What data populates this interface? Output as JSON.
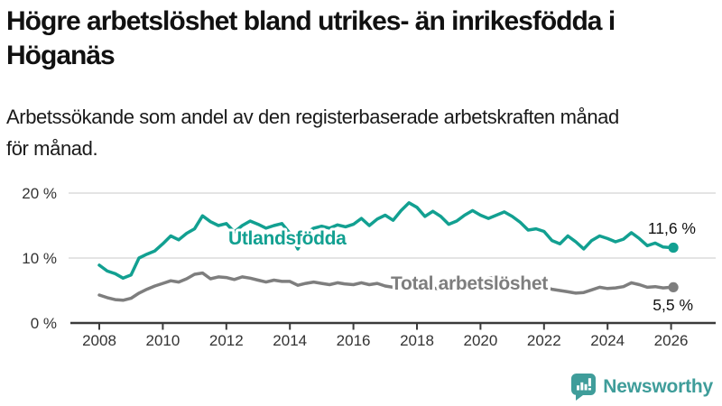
{
  "header": {
    "title_lines": [
      "Högre arbetslöshet bland utrikes- än inrikesfödda i",
      "Höganäs"
    ],
    "subtitle_lines": [
      "Arbetssökande som andel av den registerbaserade arbetskraften månad",
      "för månad."
    ]
  },
  "branding": {
    "logo_text": "Newsworthy",
    "logo_color": "#3f9d9a"
  },
  "chart_data": {
    "type": "line",
    "title": "",
    "xlabel": "",
    "ylabel": "",
    "grid": "horizontal-only",
    "xlim": [
      2007.1,
      2026.4
    ],
    "ylim": [
      0,
      21.5
    ],
    "x_ticks": [
      2008,
      2010,
      2012,
      2014,
      2016,
      2018,
      2020,
      2022,
      2024,
      2026
    ],
    "y_ticks": [
      {
        "v": 0,
        "label": "0 %"
      },
      {
        "v": 10,
        "label": "10 %"
      },
      {
        "v": 20,
        "label": "20 %"
      }
    ],
    "x": [
      2008,
      2008.25,
      2008.5,
      2008.75,
      2009,
      2009.25,
      2009.5,
      2009.75,
      2010,
      2010.25,
      2010.5,
      2010.75,
      2011,
      2011.25,
      2011.5,
      2011.75,
      2012,
      2012.25,
      2012.5,
      2012.75,
      2013,
      2013.25,
      2013.5,
      2013.75,
      2014,
      2014.25,
      2014.5,
      2014.75,
      2015,
      2015.25,
      2015.5,
      2015.75,
      2016,
      2016.25,
      2016.5,
      2016.75,
      2017,
      2017.25,
      2017.5,
      2017.75,
      2018,
      2018.25,
      2018.5,
      2018.75,
      2019,
      2019.25,
      2019.5,
      2019.75,
      2020,
      2020.25,
      2020.5,
      2020.75,
      2021,
      2021.25,
      2021.5,
      2021.75,
      2022,
      2022.25,
      2022.5,
      2022.75,
      2023,
      2023.25,
      2023.5,
      2023.75,
      2024,
      2024.25,
      2024.5,
      2024.75,
      2025,
      2025.25,
      2025.5,
      2025.75,
      2026
    ],
    "series": [
      {
        "name": "Utlandsfödda",
        "color": "#12a091",
        "end_label": "11,6 %",
        "end_value": 11.6,
        "values": [
          8.9,
          8.0,
          7.6,
          6.9,
          7.4,
          10.0,
          10.6,
          11.1,
          12.2,
          13.4,
          12.8,
          13.8,
          14.5,
          16.5,
          15.6,
          15.0,
          15.3,
          14.0,
          15.0,
          15.7,
          15.2,
          14.6,
          15.0,
          15.3,
          13.8,
          11.4,
          13.8,
          14.6,
          14.9,
          14.6,
          15.1,
          14.8,
          15.2,
          16.1,
          15.0,
          16.0,
          16.6,
          15.8,
          17.3,
          18.5,
          17.8,
          16.4,
          17.2,
          16.4,
          15.2,
          15.7,
          16.6,
          17.3,
          16.6,
          16.1,
          16.6,
          17.1,
          16.4,
          15.5,
          14.3,
          14.5,
          14.1,
          12.7,
          12.2,
          13.4,
          12.5,
          11.4,
          12.7,
          13.4,
          13.0,
          12.5,
          12.9,
          13.9,
          13.0,
          11.9,
          12.3,
          11.7,
          11.6
        ]
      },
      {
        "name": "Total arbetslöshet",
        "color": "#7e7e7e",
        "end_label": "5,5 %",
        "end_value": 5.5,
        "values": [
          4.3,
          3.9,
          3.6,
          3.5,
          3.8,
          4.6,
          5.2,
          5.7,
          6.1,
          6.5,
          6.3,
          6.8,
          7.5,
          7.7,
          6.8,
          7.1,
          7.0,
          6.7,
          7.1,
          6.9,
          6.6,
          6.3,
          6.6,
          6.4,
          6.4,
          5.8,
          6.1,
          6.3,
          6.1,
          5.9,
          6.2,
          6.0,
          5.9,
          6.2,
          5.9,
          6.1,
          5.7,
          5.5,
          5.4,
          5.5,
          5.3,
          5.2,
          5.4,
          5.2,
          5.1,
          5.2,
          5.3,
          5.2,
          5.5,
          6.9,
          7.0,
          6.7,
          6.4,
          6.1,
          5.9,
          5.7,
          5.5,
          5.2,
          5.0,
          4.8,
          4.6,
          4.7,
          5.1,
          5.5,
          5.3,
          5.4,
          5.6,
          6.2,
          5.9,
          5.5,
          5.6,
          5.4,
          5.5
        ]
      }
    ],
    "legend_position": "inline-labels"
  }
}
